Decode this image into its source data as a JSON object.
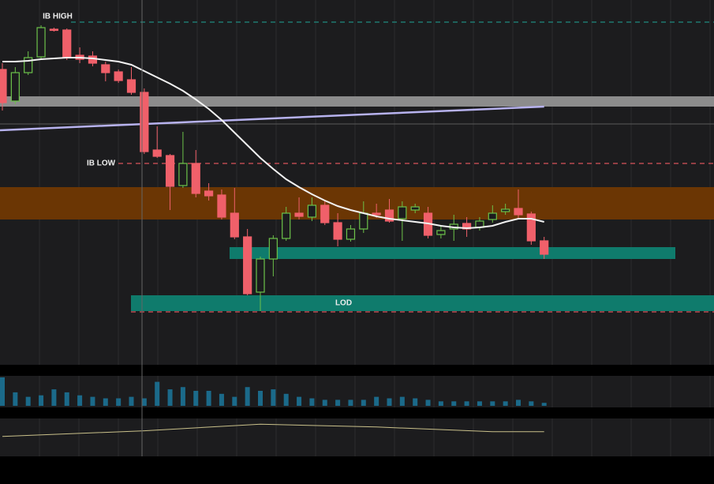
{
  "chart_data": {
    "type": "candlestick",
    "ylim": [
      0,
      460
    ],
    "open": [
      372,
      332,
      368,
      388,
      423,
      422,
      390,
      389,
      378,
      369,
      359,
      343,
      270,
      263,
      225,
      253,
      218,
      213,
      190,
      160,
      90,
      132,
      158,
      190,
      185,
      200,
      178,
      157,
      170,
      190,
      194,
      183,
      194,
      190,
      163,
      170,
      177,
      172,
      182,
      192,
      196,
      189,
      155
    ],
    "high": [
      380,
      375,
      395,
      428,
      425,
      424,
      400,
      395,
      382,
      372,
      375,
      348,
      300,
      265,
      293,
      270,
      228,
      220,
      222,
      170,
      135,
      162,
      198,
      210,
      210,
      205,
      190,
      175,
      205,
      202,
      208,
      205,
      202,
      198,
      175,
      188,
      185,
      185,
      200,
      202,
      220,
      192,
      160
    ],
    "low": [
      320,
      328,
      365,
      385,
      420,
      384,
      380,
      376,
      357,
      355,
      340,
      265,
      260,
      194,
      222,
      210,
      206,
      182,
      157,
      86,
      66,
      110,
      155,
      182,
      180,
      175,
      148,
      154,
      165,
      184,
      178,
      155,
      190,
      158,
      158,
      155,
      160,
      168,
      178,
      188,
      184,
      150,
      132
    ],
    "close": [
      330,
      368,
      387,
      425,
      422,
      387,
      385,
      380,
      368,
      358,
      343,
      268,
      262,
      224,
      253,
      215,
      212,
      185,
      160,
      88,
      132,
      158,
      190,
      186,
      200,
      178,
      157,
      170,
      190,
      188,
      180,
      198,
      198,
      162,
      168,
      176,
      170,
      180,
      190,
      195,
      188,
      155,
      138
    ],
    "up_color": "#6cc24a",
    "down_color": "#f0606a",
    "moving_average": {
      "color": "#f2f2f2",
      "values": [
        382,
        382,
        383,
        385,
        386,
        387,
        387,
        386,
        384,
        382,
        378,
        370,
        362,
        354,
        345,
        334,
        322,
        308,
        292,
        276,
        260,
        246,
        233,
        223,
        214,
        206,
        199,
        194,
        190,
        186,
        183,
        181,
        179,
        177,
        174,
        172,
        171,
        172,
        174,
        179,
        183,
        183,
        179
      ]
    },
    "trendline": {
      "color": "#b7b2ee",
      "values": [
        295,
        325
      ]
    },
    "levels": [
      {
        "label": "IB HIGH",
        "value": 432,
        "color": "#1f8a80"
      },
      {
        "label": "IB LOW",
        "value": 253,
        "color": "#d9535c"
      },
      {
        "value": 303,
        "color": "#5a5a5a"
      },
      {
        "value": 65,
        "color": "#d9535c"
      }
    ],
    "bands": [
      {
        "from": 325,
        "to": 338,
        "color": "#8c8c8c"
      },
      {
        "from": 182,
        "to": 223,
        "color": "#6b3604"
      },
      {
        "from": 132,
        "to": 147,
        "color": "#0f7b6c"
      },
      {
        "label": "LOD",
        "from": 66,
        "to": 86,
        "color": "#0f7b6c"
      }
    ],
    "volume": {
      "color": "#1b6a8a",
      "ylim": [
        0,
        40
      ],
      "values": [
        38,
        18,
        12,
        14,
        22,
        18,
        14,
        12,
        10,
        10,
        12,
        10,
        32,
        22,
        25,
        20,
        20,
        16,
        12,
        25,
        20,
        22,
        16,
        12,
        10,
        8,
        8,
        8,
        8,
        12,
        10,
        12,
        10,
        8,
        6,
        6,
        6,
        6,
        6,
        6,
        8,
        6,
        4
      ]
    },
    "oscillator": {
      "color": "#c9c08a",
      "ylim": [
        0,
        40
      ],
      "x": [
        0,
        11,
        20,
        29,
        38,
        42
      ],
      "values": [
        21,
        27,
        34,
        31,
        26,
        26
      ]
    }
  }
}
